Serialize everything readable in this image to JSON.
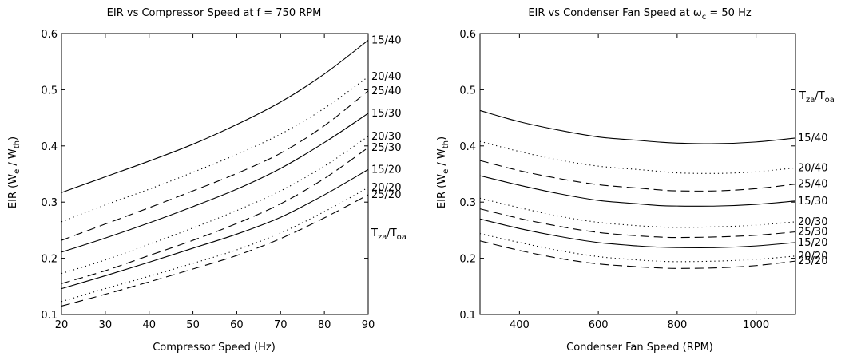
{
  "chart_data": [
    {
      "type": "line",
      "title": "EIR vs Compressor Speed at f = 750 RPM",
      "xlabel": "Compressor Speed (Hz)",
      "ylabel": "EIR (W / W )",
      "ylabel_subscripts": [
        "e",
        "th"
      ],
      "xlim": [
        20,
        90
      ],
      "ylim": [
        0.1,
        0.6
      ],
      "xticks": [
        20,
        30,
        40,
        50,
        60,
        70,
        80,
        90
      ],
      "yticks": [
        0.1,
        0.2,
        0.3,
        0.4,
        0.5,
        0.6
      ],
      "grid": false,
      "legend_title": "T/T",
      "legend_title_parts": [
        "T",
        "za",
        "/T",
        "oa"
      ],
      "x": [
        20,
        30,
        40,
        50,
        60,
        70,
        80,
        90
      ],
      "series": [
        {
          "name": "15/40",
          "style": "solid",
          "values": [
            0.317,
            0.345,
            0.373,
            0.403,
            0.438,
            0.478,
            0.528,
            0.588
          ]
        },
        {
          "name": "20/40",
          "style": "dotted",
          "values": [
            0.265,
            0.295,
            0.323,
            0.353,
            0.385,
            0.421,
            0.467,
            0.523
          ]
        },
        {
          "name": "25/40",
          "style": "dashed",
          "values": [
            0.232,
            0.261,
            0.29,
            0.32,
            0.351,
            0.387,
            0.436,
            0.498
          ]
        },
        {
          "name": "15/30",
          "style": "solid",
          "values": [
            0.211,
            0.236,
            0.263,
            0.292,
            0.323,
            0.36,
            0.406,
            0.458
          ]
        },
        {
          "name": "20/30",
          "style": "dotted",
          "values": [
            0.173,
            0.197,
            0.225,
            0.254,
            0.285,
            0.32,
            0.364,
            0.417
          ]
        },
        {
          "name": "25/30",
          "style": "dashed",
          "values": [
            0.155,
            0.178,
            0.205,
            0.232,
            0.262,
            0.297,
            0.342,
            0.397
          ]
        },
        {
          "name": "15/20",
          "style": "solid",
          "values": [
            0.146,
            0.169,
            0.193,
            0.218,
            0.243,
            0.273,
            0.313,
            0.358
          ]
        },
        {
          "name": "20/20",
          "style": "dotted",
          "values": [
            0.123,
            0.146,
            0.168,
            0.191,
            0.215,
            0.245,
            0.283,
            0.326
          ]
        },
        {
          "name": "25/20",
          "style": "dashed",
          "values": [
            0.115,
            0.136,
            0.158,
            0.181,
            0.205,
            0.235,
            0.272,
            0.313
          ]
        }
      ],
      "curve_labels": [
        "15/40",
        "20/40",
        "25/40",
        "15/30",
        "20/30",
        "25/30",
        "15/20",
        "20/20",
        "25/20"
      ]
    },
    {
      "type": "line",
      "title": "EIR vs Condenser Fan Speed at ω = 50 Hz",
      "title_parts": [
        "EIR vs Condenser Fan Speed at ω",
        "c",
        " = 50 Hz"
      ],
      "xlabel": "Condenser Fan Speed (RPM)",
      "ylabel": "EIR (W / W )",
      "ylabel_subscripts": [
        "e",
        "th"
      ],
      "xlim": [
        300,
        1100
      ],
      "ylim": [
        0.1,
        0.6
      ],
      "xticks": [
        400,
        600,
        800,
        1000
      ],
      "yticks": [
        0.1,
        0.2,
        0.3,
        0.4,
        0.5,
        0.6
      ],
      "grid": false,
      "legend_title": "T/T",
      "legend_title_parts": [
        "T",
        "za",
        "/T",
        "oa"
      ],
      "x": [
        300,
        400,
        500,
        600,
        700,
        750,
        800,
        900,
        1000,
        1100
      ],
      "series": [
        {
          "name": "15/40",
          "style": "solid",
          "values": [
            0.463,
            0.443,
            0.428,
            0.416,
            0.41,
            0.407,
            0.405,
            0.404,
            0.407,
            0.414
          ]
        },
        {
          "name": "20/40",
          "style": "dotted",
          "values": [
            0.408,
            0.39,
            0.375,
            0.364,
            0.358,
            0.355,
            0.352,
            0.351,
            0.354,
            0.361
          ]
        },
        {
          "name": "25/40",
          "style": "dashed",
          "values": [
            0.374,
            0.356,
            0.342,
            0.331,
            0.325,
            0.322,
            0.32,
            0.32,
            0.324,
            0.332
          ]
        },
        {
          "name": "15/30",
          "style": "solid",
          "values": [
            0.347,
            0.33,
            0.315,
            0.303,
            0.297,
            0.294,
            0.293,
            0.293,
            0.296,
            0.302
          ]
        },
        {
          "name": "20/30",
          "style": "dotted",
          "values": [
            0.307,
            0.29,
            0.275,
            0.264,
            0.258,
            0.256,
            0.255,
            0.256,
            0.259,
            0.265
          ]
        },
        {
          "name": "25/30",
          "style": "dashed",
          "values": [
            0.288,
            0.271,
            0.257,
            0.246,
            0.24,
            0.238,
            0.237,
            0.238,
            0.241,
            0.247
          ]
        },
        {
          "name": "15/20",
          "style": "solid",
          "values": [
            0.27,
            0.253,
            0.239,
            0.228,
            0.222,
            0.22,
            0.219,
            0.219,
            0.222,
            0.228
          ]
        },
        {
          "name": "20/20",
          "style": "dotted",
          "values": [
            0.244,
            0.228,
            0.214,
            0.203,
            0.197,
            0.195,
            0.194,
            0.195,
            0.198,
            0.204
          ]
        },
        {
          "name": "25/20",
          "style": "dashed",
          "values": [
            0.231,
            0.214,
            0.2,
            0.19,
            0.185,
            0.183,
            0.182,
            0.183,
            0.187,
            0.195
          ]
        }
      ],
      "curve_labels": [
        "15/40",
        "20/40",
        "25/40",
        "15/30",
        "20/30",
        "25/30",
        "15/20",
        "20/20",
        "25/20"
      ]
    }
  ]
}
